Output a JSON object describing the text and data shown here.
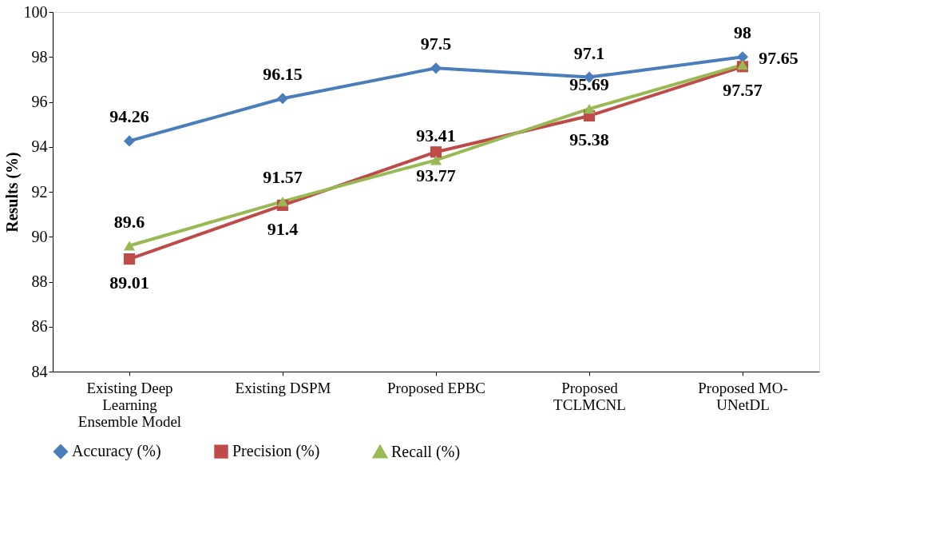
{
  "chart_data": {
    "type": "line",
    "ylabel": "Results (%)",
    "categories": [
      "Existing Deep Learning Ensemble Model",
      "Existing DSPM",
      "Proposed EPBC",
      "Proposed TCLMCNL",
      "Proposed MO-UNetDL"
    ],
    "series": [
      {
        "name": "Accuracy (%)",
        "color": "#4a7ebb",
        "marker": "diamond",
        "values": [
          94.26,
          96.15,
          97.5,
          97.1,
          98
        ]
      },
      {
        "name": "Precision (%)",
        "color": "#be4b48",
        "marker": "square",
        "values": [
          89.01,
          91.4,
          93.77,
          95.38,
          97.57
        ]
      },
      {
        "name": "Recall (%)",
        "color": "#98b954",
        "marker": "triangle",
        "values": [
          89.6,
          91.57,
          93.41,
          95.69,
          97.65
        ]
      }
    ],
    "ylim": [
      84,
      100
    ],
    "yticks": [
      84,
      86,
      88,
      90,
      92,
      94,
      96,
      98,
      100
    ],
    "grid": false,
    "legend": "bottom",
    "data_labels": true,
    "line_style": "solid"
  }
}
